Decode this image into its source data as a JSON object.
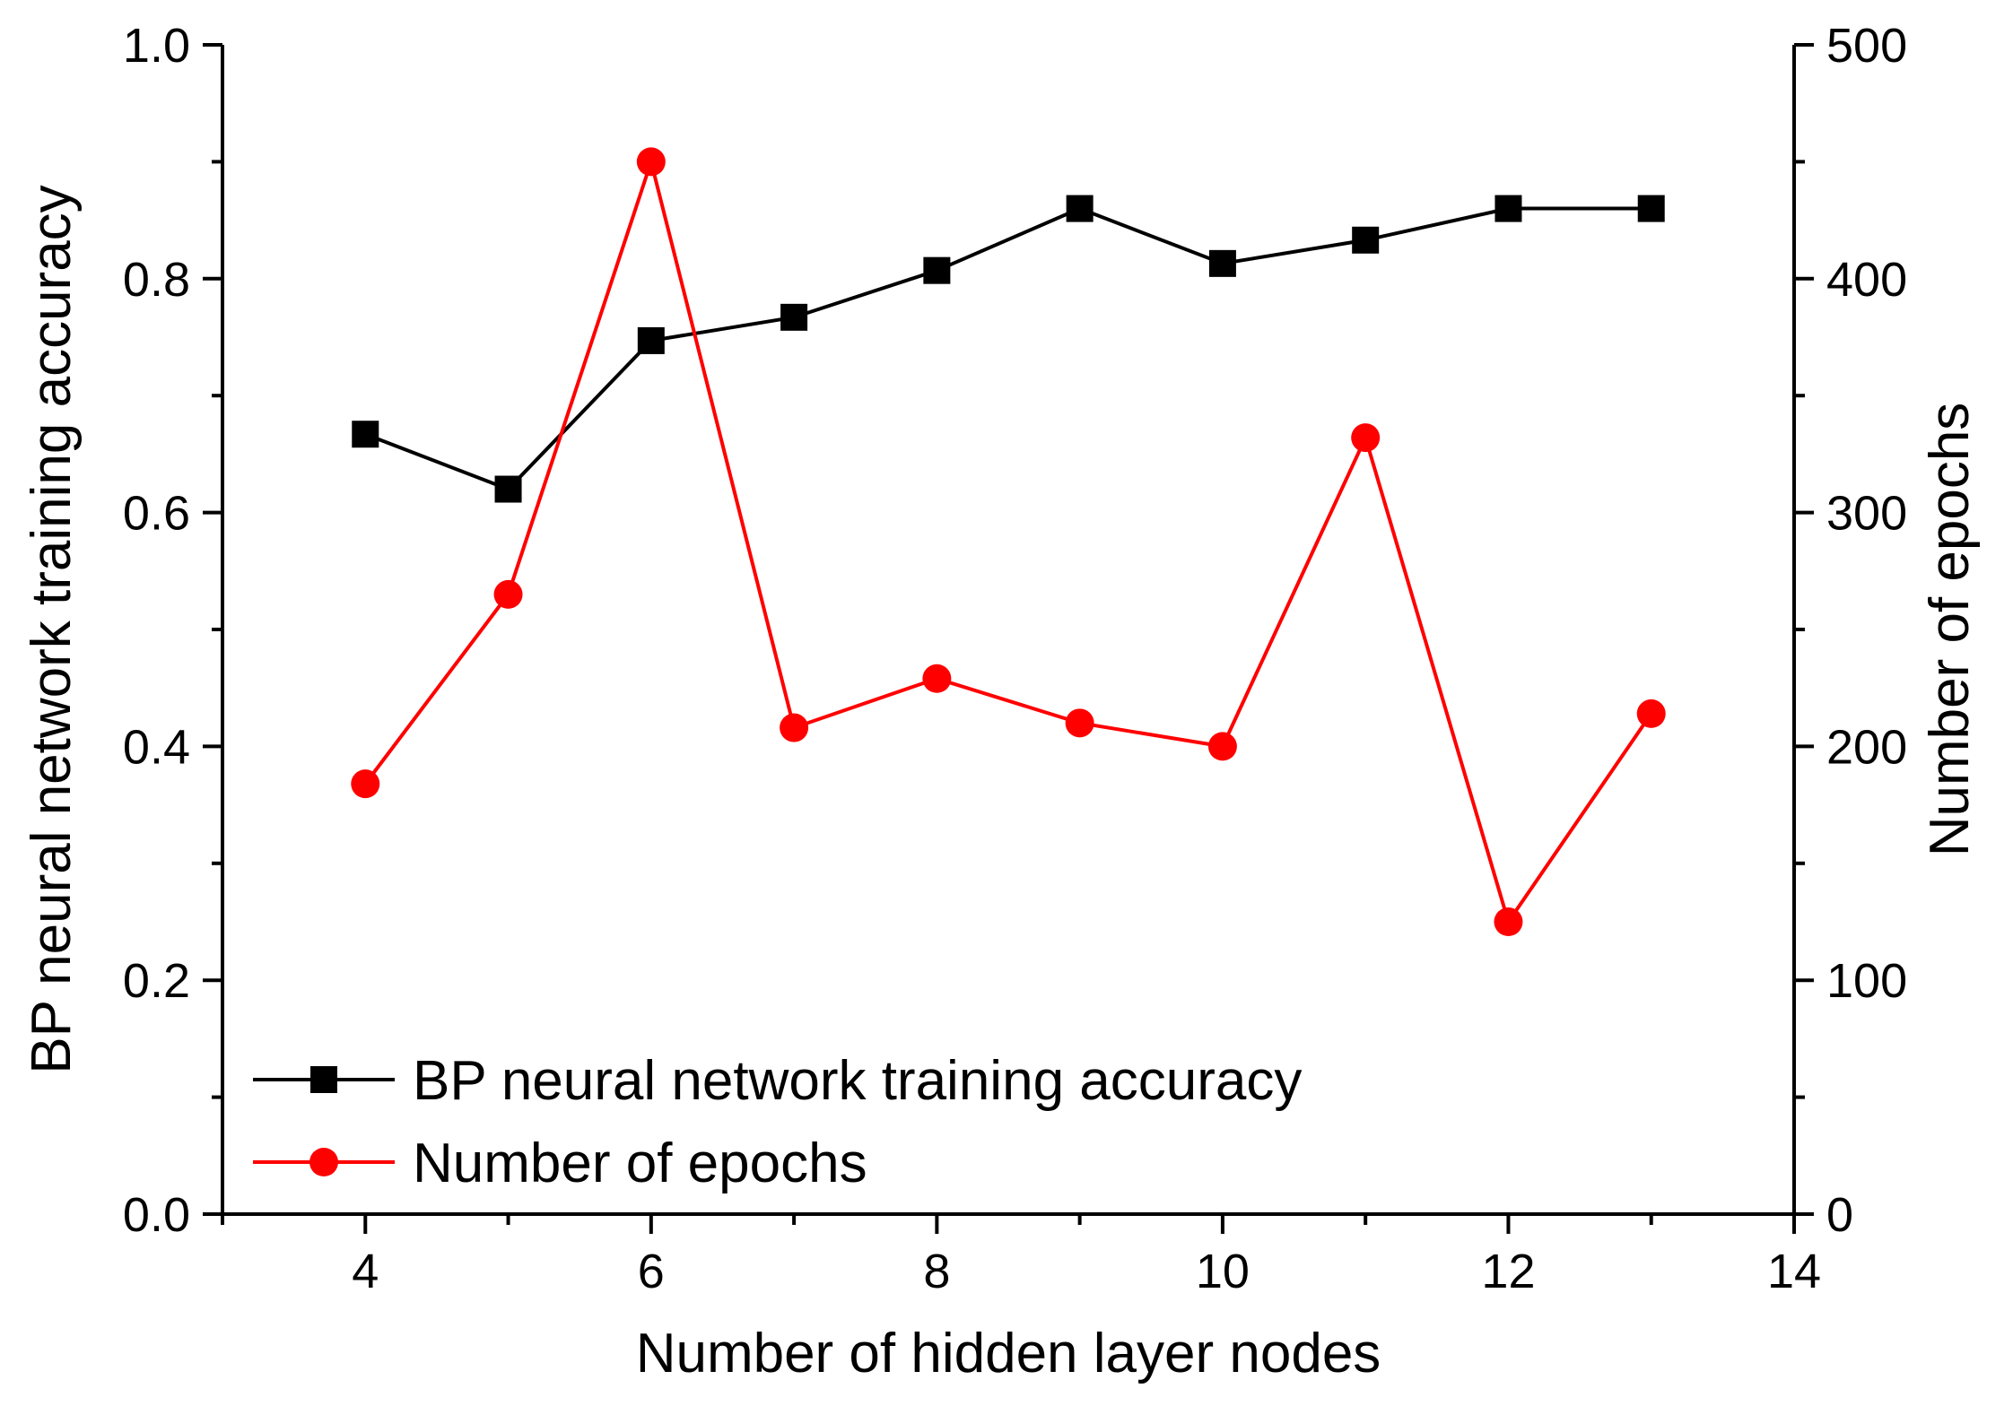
{
  "chart_data": {
    "type": "line",
    "title": "",
    "xlabel": "Number of hidden layer nodes",
    "ylabel": "BP neural network training accuracy",
    "y2label": "Number of epochs",
    "xlim": [
      3,
      14
    ],
    "ylim": [
      0,
      1.0
    ],
    "y2lim": [
      0,
      500
    ],
    "x_ticks": [
      "4",
      "6",
      "8",
      "10",
      "12",
      "14"
    ],
    "y_ticks": [
      "0.0",
      "0.2",
      "0.4",
      "0.6",
      "0.8",
      "1.0"
    ],
    "y2_ticks": [
      "0",
      "100",
      "200",
      "300",
      "400",
      "500"
    ],
    "grid": false,
    "legend_position": "bottom-left",
    "x": [
      4,
      5,
      6,
      7,
      8,
      9,
      10,
      11,
      12,
      13
    ],
    "series": [
      {
        "name": "BP neural network training accuracy",
        "axis": "left",
        "color": "#000000",
        "marker": "square",
        "values": [
          0.667,
          0.62,
          0.747,
          0.767,
          0.807,
          0.86,
          0.813,
          0.833,
          0.86,
          0.86
        ]
      },
      {
        "name": "Number of epochs",
        "axis": "right",
        "color": "#ff0000",
        "marker": "circle",
        "values": [
          184,
          265,
          450,
          208,
          229,
          210,
          200,
          332,
          125,
          214
        ]
      }
    ]
  }
}
